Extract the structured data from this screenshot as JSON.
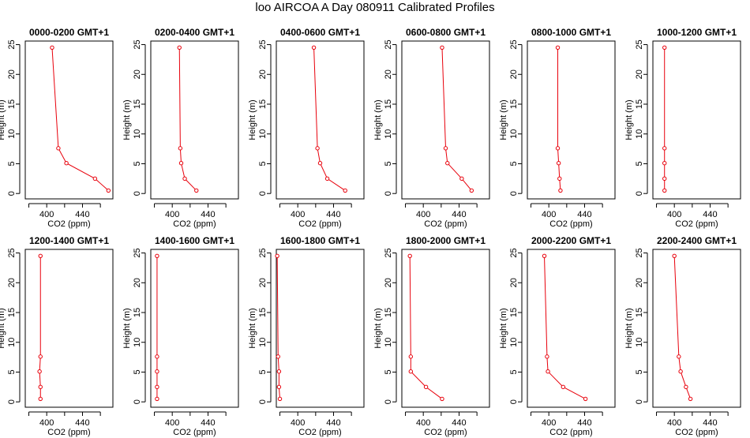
{
  "figure": {
    "title": "loo AIRCOA A  Day 080911  Calibrated Profiles"
  },
  "colors": {
    "series": "#e8000b",
    "axis": "#000000",
    "background": "#ffffff"
  },
  "chart_data": [
    {
      "type": "line",
      "title": "0000-0200 GMT+1",
      "xlabel": "CO2 (ppm)",
      "ylabel": "Height (m)",
      "xlim": [
        376,
        474
      ],
      "ylim": [
        -0.9,
        25.6
      ],
      "xticks": [
        400,
        440
      ],
      "yticks": [
        0,
        5,
        10,
        15,
        20,
        25
      ],
      "series": [
        {
          "x": [
            406,
            413,
            422,
            454,
            469
          ],
          "y": [
            24.5,
            7.6,
            5.1,
            2.5,
            0.5
          ]
        }
      ]
    },
    {
      "type": "line",
      "title": "0200-0400 GMT+1",
      "xlabel": "CO2 (ppm)",
      "ylabel": "Height (m)",
      "xlim": [
        376,
        474
      ],
      "ylim": [
        -0.9,
        25.6
      ],
      "xticks": [
        400,
        440
      ],
      "yticks": [
        0,
        5,
        10,
        15,
        20,
        25
      ],
      "series": [
        {
          "x": [
            408,
            409,
            410,
            414,
            427
          ],
          "y": [
            24.5,
            7.6,
            5.1,
            2.5,
            0.5
          ]
        }
      ]
    },
    {
      "type": "line",
      "title": "0400-0600 GMT+1",
      "xlabel": "CO2 (ppm)",
      "ylabel": "Height (m)",
      "xlim": [
        376,
        474
      ],
      "ylim": [
        -0.9,
        25.6
      ],
      "xticks": [
        400,
        440
      ],
      "yticks": [
        0,
        5,
        10,
        15,
        20,
        25
      ],
      "series": [
        {
          "x": [
            418,
            422,
            425,
            433,
            453
          ],
          "y": [
            24.5,
            7.6,
            5.1,
            2.5,
            0.5
          ]
        }
      ]
    },
    {
      "type": "line",
      "title": "0600-0800 GMT+1",
      "xlabel": "CO2 (ppm)",
      "ylabel": "Height (m)",
      "xlim": [
        376,
        474
      ],
      "ylim": [
        -0.9,
        25.6
      ],
      "xticks": [
        400,
        440
      ],
      "yticks": [
        0,
        5,
        10,
        15,
        20,
        25
      ],
      "series": [
        {
          "x": [
            421,
            425,
            427,
            443,
            454
          ],
          "y": [
            24.5,
            7.6,
            5.1,
            2.5,
            0.5
          ]
        }
      ]
    },
    {
      "type": "line",
      "title": "0800-1000 GMT+1",
      "xlabel": "CO2 (ppm)",
      "ylabel": "Height (m)",
      "xlim": [
        376,
        474
      ],
      "ylim": [
        -0.9,
        25.6
      ],
      "xticks": [
        400,
        440
      ],
      "yticks": [
        0,
        5,
        10,
        15,
        20,
        25
      ],
      "series": [
        {
          "x": [
            410,
            410,
            411,
            412,
            413
          ],
          "y": [
            24.5,
            7.6,
            5.1,
            2.5,
            0.5
          ]
        }
      ]
    },
    {
      "type": "line",
      "title": "1000-1200 GMT+1",
      "xlabel": "CO2 (ppm)",
      "ylabel": "Height (m)",
      "xlim": [
        376,
        474
      ],
      "ylim": [
        -0.9,
        25.6
      ],
      "xticks": [
        400,
        440
      ],
      "yticks": [
        0,
        5,
        10,
        15,
        20,
        25
      ],
      "series": [
        {
          "x": [
            389,
            389,
            389,
            389,
            389
          ],
          "y": [
            24.5,
            7.6,
            5.1,
            2.5,
            0.5
          ]
        }
      ]
    },
    {
      "type": "line",
      "title": "1200-1400 GMT+1",
      "xlabel": "CO2 (ppm)",
      "ylabel": "Height (m)",
      "xlim": [
        376,
        474
      ],
      "ylim": [
        -0.9,
        25.6
      ],
      "xticks": [
        400,
        440
      ],
      "yticks": [
        0,
        5,
        10,
        15,
        20,
        25
      ],
      "series": [
        {
          "x": [
            393,
            393,
            392,
            393,
            393
          ],
          "y": [
            24.5,
            7.6,
            5.1,
            2.5,
            0.5
          ]
        }
      ]
    },
    {
      "type": "line",
      "title": "1400-1600 GMT+1",
      "xlabel": "CO2 (ppm)",
      "ylabel": "Height (m)",
      "xlim": [
        376,
        474
      ],
      "ylim": [
        -0.9,
        25.6
      ],
      "xticks": [
        400,
        440
      ],
      "yticks": [
        0,
        5,
        10,
        15,
        20,
        25
      ],
      "series": [
        {
          "x": [
            383,
            383,
            383,
            383,
            383
          ],
          "y": [
            24.5,
            7.6,
            5.1,
            2.5,
            0.5
          ]
        }
      ]
    },
    {
      "type": "line",
      "title": "1600-1800 GMT+1",
      "xlabel": "CO2 (ppm)",
      "ylabel": "Height (m)",
      "xlim": [
        376,
        474
      ],
      "ylim": [
        -0.9,
        25.6
      ],
      "xticks": [
        400,
        440
      ],
      "yticks": [
        0,
        5,
        10,
        15,
        20,
        25
      ],
      "series": [
        {
          "x": [
            377,
            378,
            379,
            379,
            380
          ],
          "y": [
            24.5,
            7.6,
            5.1,
            2.5,
            0.5
          ]
        }
      ]
    },
    {
      "type": "line",
      "title": "1800-2000 GMT+1",
      "xlabel": "CO2 (ppm)",
      "ylabel": "Height (m)",
      "xlim": [
        376,
        474
      ],
      "ylim": [
        -0.9,
        25.6
      ],
      "xticks": [
        400,
        440
      ],
      "yticks": [
        0,
        5,
        10,
        15,
        20,
        25
      ],
      "series": [
        {
          "x": [
            385,
            386,
            386,
            403,
            421
          ],
          "y": [
            24.5,
            7.6,
            5.1,
            2.5,
            0.5
          ]
        }
      ]
    },
    {
      "type": "line",
      "title": "2000-2200 GMT+1",
      "xlabel": "CO2 (ppm)",
      "ylabel": "Height (m)",
      "xlim": [
        376,
        474
      ],
      "ylim": [
        -0.9,
        25.6
      ],
      "xticks": [
        400,
        440
      ],
      "yticks": [
        0,
        5,
        10,
        15,
        20,
        25
      ],
      "series": [
        {
          "x": [
            395,
            398,
            399,
            416,
            441
          ],
          "y": [
            24.5,
            7.6,
            5.1,
            2.5,
            0.5
          ]
        }
      ]
    },
    {
      "type": "line",
      "title": "2200-2400 GMT+1",
      "xlabel": "CO2 (ppm)",
      "ylabel": "Height (m)",
      "xlim": [
        376,
        474
      ],
      "ylim": [
        -0.9,
        25.6
      ],
      "xticks": [
        400,
        440
      ],
      "yticks": [
        0,
        5,
        10,
        15,
        20,
        25
      ],
      "series": [
        {
          "x": [
            400,
            405,
            407,
            413,
            418
          ],
          "y": [
            24.5,
            7.6,
            5.1,
            2.5,
            0.5
          ]
        }
      ]
    }
  ]
}
